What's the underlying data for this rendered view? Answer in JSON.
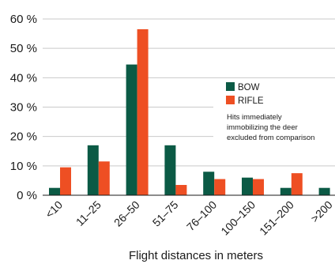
{
  "chart_data": {
    "type": "bar",
    "title": "",
    "xlabel": "Flight distances in meters",
    "ylabel": "",
    "categories": [
      "<10",
      "11–25",
      "26–50",
      "51–75",
      "76–100",
      "100–150",
      "151–200",
      ">200"
    ],
    "ylim": [
      0,
      60
    ],
    "yticks": [
      0,
      10,
      20,
      30,
      40,
      50,
      60
    ],
    "ytick_labels": [
      "0 %",
      "10 %",
      "20 %",
      "30 %",
      "40 %",
      "50 %",
      "60 %"
    ],
    "grid": true,
    "legend_position": "right",
    "series": [
      {
        "name": "BOW",
        "color": "#0b5a45",
        "values": [
          2.5,
          17,
          44.5,
          17,
          8,
          6,
          2.5,
          2.5
        ]
      },
      {
        "name": "RIFLE",
        "color": "#ee4f23",
        "values": [
          9.5,
          11.5,
          56.5,
          3.5,
          5.5,
          5.5,
          7.5,
          0
        ]
      }
    ],
    "annotation": [
      "Hits immediately",
      "immobilizing the deer",
      "excluded from comparison"
    ]
  },
  "colors": {
    "grid": "#c9c9c9",
    "axis": "#1a1a1a"
  }
}
